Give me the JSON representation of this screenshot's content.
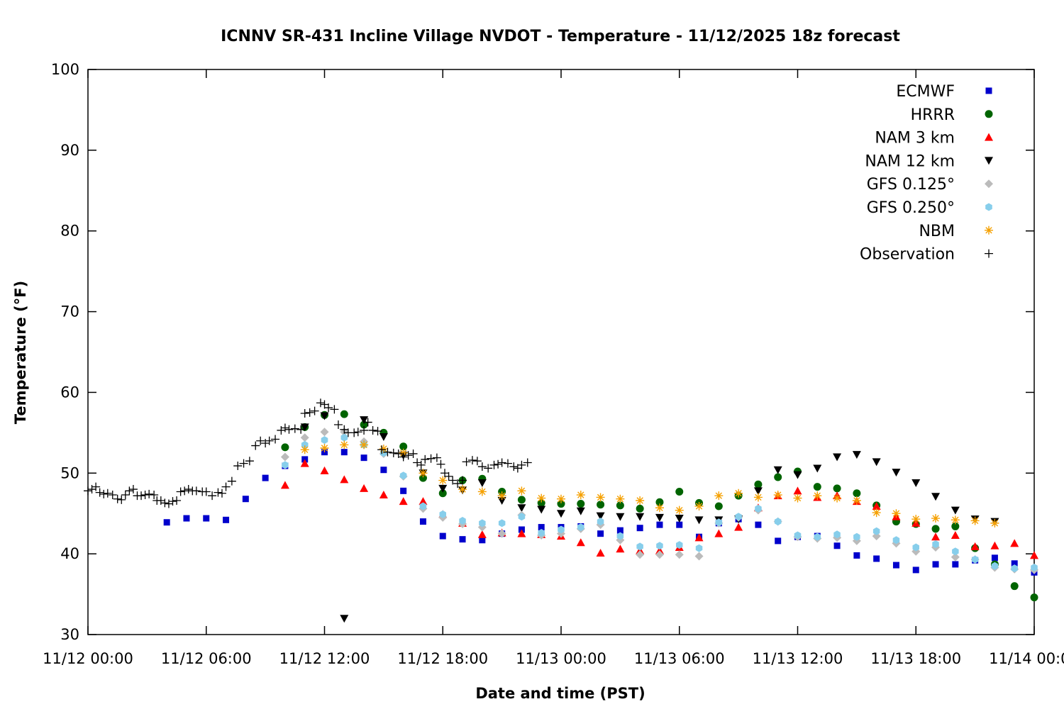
{
  "chart_data": {
    "type": "scatter",
    "title": "ICNNV SR-431 Incline Village NVDOT - Temperature - 11/12/2025 18z forecast",
    "xlabel": "Date and time (PST)",
    "ylabel": "Temperature (°F)",
    "xlim": [
      0,
      48
    ],
    "ylim": [
      30,
      100
    ],
    "x_unit": "hours since 11/12 00:00 PST",
    "xticks": [
      {
        "x": 0,
        "label": "11/12 00:00"
      },
      {
        "x": 6,
        "label": "11/12 06:00"
      },
      {
        "x": 12,
        "label": "11/12 12:00"
      },
      {
        "x": 18,
        "label": "11/12 18:00"
      },
      {
        "x": 24,
        "label": "11/13 00:00"
      },
      {
        "x": 30,
        "label": "11/13 06:00"
      },
      {
        "x": 36,
        "label": "11/13 12:00"
      },
      {
        "x": 42,
        "label": "11/13 18:00"
      },
      {
        "x": 48,
        "label": "11/14 00:00"
      }
    ],
    "yticks": [
      30,
      40,
      50,
      60,
      70,
      80,
      90,
      100
    ],
    "grid": false,
    "legend_position": "top-right",
    "series": [
      {
        "name": "ECMWF",
        "marker": "square",
        "color": "#0000cc",
        "x": [
          4,
          5,
          6,
          7,
          8,
          9,
          10,
          11,
          12,
          13,
          14,
          15,
          16,
          17,
          18,
          19,
          20,
          21,
          22,
          23,
          24,
          25,
          26,
          27,
          28,
          29,
          30,
          31,
          32,
          33,
          34,
          35,
          36,
          37,
          38,
          39,
          40,
          41,
          42,
          43,
          44,
          45,
          46,
          47,
          48
        ],
        "y": [
          43.9,
          44.4,
          44.4,
          44.2,
          46.8,
          49.4,
          50.9,
          51.7,
          52.6,
          52.6,
          51.9,
          50.4,
          47.8,
          44.0,
          42.2,
          41.8,
          41.7,
          42.5,
          43.0,
          43.3,
          43.3,
          43.4,
          42.5,
          42.9,
          43.2,
          43.6,
          43.6,
          42.1,
          43.8,
          44.3,
          43.6,
          41.6,
          42.1,
          42.2,
          41.0,
          39.8,
          39.4,
          38.6,
          38.0,
          38.7,
          38.7,
          39.2,
          39.5,
          38.8,
          37.7
        ]
      },
      {
        "name": "HRRR",
        "marker": "circle",
        "color": "#006400",
        "x": [
          10,
          11,
          12,
          13,
          14,
          15,
          16,
          17,
          18,
          19,
          20,
          21,
          22,
          23,
          24,
          25,
          26,
          27,
          28,
          29,
          30,
          31,
          32,
          33,
          34,
          35,
          36,
          37,
          38,
          39,
          40,
          41,
          42,
          43,
          44,
          45,
          46,
          47,
          48
        ],
        "y": [
          53.2,
          55.7,
          57.2,
          57.3,
          56.0,
          55.0,
          53.3,
          49.4,
          47.5,
          49.1,
          49.3,
          47.7,
          46.7,
          46.3,
          46.2,
          46.2,
          46.1,
          46.0,
          45.6,
          46.4,
          47.7,
          46.3,
          45.9,
          47.2,
          48.6,
          49.5,
          50.2,
          48.3,
          48.1,
          47.5,
          46.0,
          44.0,
          43.7,
          43.1,
          43.4,
          40.7,
          38.7,
          36.0,
          34.6
        ]
      },
      {
        "name": "NAM 3 km",
        "marker": "triangle-up",
        "color": "#ff0000",
        "x": [
          10,
          11,
          12,
          13,
          14,
          15,
          16,
          17,
          18,
          19,
          20,
          21,
          22,
          23,
          24,
          25,
          26,
          27,
          28,
          29,
          30,
          31,
          32,
          33,
          34,
          35,
          36,
          37,
          38,
          39,
          40,
          41,
          42,
          43,
          44,
          45,
          46,
          47,
          48
        ],
        "y": [
          48.5,
          51.2,
          50.3,
          49.2,
          48.1,
          47.3,
          46.5,
          46.5,
          44.9,
          43.8,
          42.4,
          42.6,
          42.5,
          42.4,
          42.2,
          41.4,
          40.1,
          40.6,
          40.4,
          40.4,
          40.8,
          42.0,
          42.5,
          43.3,
          45.7,
          47.2,
          47.8,
          47.0,
          47.2,
          46.5,
          45.9,
          44.6,
          43.8,
          42.1,
          42.3,
          40.9,
          41.0,
          41.3,
          39.8
        ]
      },
      {
        "name": "NAM 12 km",
        "marker": "triangle-down",
        "color": "#000000",
        "x": [
          11,
          12,
          13,
          14,
          15,
          16,
          17,
          18,
          19,
          20,
          21,
          22,
          23,
          24,
          25,
          26,
          27,
          28,
          29,
          30,
          31,
          32,
          33,
          34,
          35,
          36,
          37,
          38,
          39,
          40,
          41,
          42,
          43,
          44,
          45,
          46
        ],
        "y": [
          55.7,
          57.1,
          32.0,
          56.6,
          54.5,
          52.2,
          50.0,
          48.1,
          47.9,
          48.8,
          46.6,
          45.7,
          45.5,
          45.0,
          45.3,
          44.7,
          44.6,
          44.6,
          44.5,
          44.4,
          44.2,
          44.2,
          44.3,
          47.8,
          50.4,
          49.8,
          50.6,
          52.0,
          52.3,
          51.4,
          50.1,
          48.8,
          47.1,
          45.4,
          44.3,
          44.0
        ]
      },
      {
        "name": "GFS 0.125°",
        "marker": "diamond",
        "color": "#bbbbbb",
        "x": [
          10,
          11,
          12,
          13,
          14,
          15,
          16,
          17,
          18,
          19,
          20,
          21,
          22,
          23,
          24,
          25,
          26,
          27,
          28,
          29,
          30,
          31,
          32,
          33,
          34,
          35,
          36,
          37,
          38,
          39,
          40,
          41,
          42,
          43,
          44,
          45,
          46,
          47,
          48
        ],
        "y": [
          52.0,
          54.4,
          55.1,
          55.1,
          53.9,
          52.4,
          49.6,
          45.6,
          44.5,
          43.7,
          43.3,
          42.5,
          44.8,
          42.3,
          42.5,
          43.1,
          43.6,
          41.7,
          39.9,
          39.9,
          39.9,
          39.7,
          43.8,
          44.5,
          45.4,
          44.0,
          42.1,
          41.9,
          42.0,
          41.6,
          42.2,
          41.3,
          40.3,
          40.8,
          39.6,
          39.3,
          38.3,
          38.1,
          38.0
        ]
      },
      {
        "name": "GFS 0.250°",
        "marker": "hexagon",
        "color": "#87ceeb",
        "x": [
          10,
          11,
          12,
          13,
          14,
          15,
          16,
          17,
          18,
          19,
          20,
          21,
          22,
          23,
          24,
          25,
          26,
          27,
          28,
          29,
          30,
          31,
          32,
          33,
          34,
          35,
          36,
          37,
          38,
          39,
          40,
          41,
          42,
          43,
          44,
          45,
          46,
          47,
          48
        ],
        "y": [
          51.0,
          53.5,
          54.1,
          54.4,
          53.5,
          52.5,
          49.7,
          45.9,
          44.9,
          44.1,
          43.8,
          43.8,
          44.6,
          42.6,
          43.0,
          43.3,
          44.0,
          42.2,
          40.9,
          41.0,
          41.1,
          40.7,
          43.9,
          44.6,
          45.6,
          44.0,
          42.3,
          42.1,
          42.4,
          42.1,
          42.8,
          41.7,
          40.8,
          41.2,
          40.3,
          39.3,
          38.5,
          38.2,
          38.3
        ]
      },
      {
        "name": "NBM",
        "marker": "asterisk",
        "color": "#f5a000",
        "x": [
          11,
          12,
          13,
          14,
          15,
          16,
          17,
          18,
          19,
          20,
          21,
          22,
          23,
          24,
          25,
          26,
          27,
          28,
          29,
          30,
          31,
          32,
          33,
          34,
          35,
          36,
          37,
          38,
          39,
          40,
          41,
          42,
          43,
          44,
          45,
          46
        ],
        "y": [
          52.9,
          53.1,
          53.5,
          53.5,
          53.0,
          52.5,
          50.0,
          49.1,
          48.0,
          47.7,
          47.2,
          47.8,
          46.9,
          46.8,
          47.3,
          47.0,
          46.8,
          46.6,
          45.7,
          45.4,
          45.9,
          47.2,
          47.5,
          47.0,
          47.3,
          46.9,
          47.2,
          46.9,
          46.6,
          45.1,
          45.0,
          44.3,
          44.4,
          44.2,
          44.1,
          43.8
        ]
      },
      {
        "name": "Observation",
        "marker": "plus",
        "color": "#000000",
        "x": [
          0,
          0.2,
          0.4,
          0.6,
          0.8,
          1.0,
          1.25,
          1.5,
          1.7,
          1.9,
          2.1,
          2.3,
          2.5,
          2.7,
          2.9,
          3.1,
          3.35,
          3.5,
          3.7,
          3.9,
          4.1,
          4.3,
          4.5,
          4.7,
          4.9,
          5.1,
          5.3,
          5.5,
          5.8,
          6.0,
          6.3,
          6.6,
          6.8,
          7.0,
          7.3,
          7.6,
          7.9,
          8.2,
          8.5,
          8.75,
          9.0,
          9.2,
          9.5,
          9.8,
          10.0,
          10.2,
          10.5,
          10.8,
          11.0,
          11.25,
          11.5,
          11.8,
          12.0,
          12.2,
          12.5,
          12.7,
          13.0,
          13.2,
          13.5,
          13.7,
          14.0,
          14.2,
          14.45,
          14.7,
          14.9,
          15.2,
          15.5,
          15.75,
          16.0,
          16.25,
          16.5,
          16.7,
          16.9,
          17.1,
          17.4,
          17.7,
          17.9,
          18.1,
          18.3,
          18.5,
          18.75,
          19.0,
          19.2,
          19.5,
          19.75,
          20.0,
          20.3,
          20.6,
          20.8,
          21.0,
          21.3,
          21.6,
          21.8,
          22.0,
          22.3
        ],
        "y": [
          47.8,
          48.0,
          48.3,
          47.6,
          47.4,
          47.5,
          47.3,
          46.8,
          46.7,
          47.3,
          47.8,
          48.0,
          47.2,
          47.2,
          47.3,
          47.4,
          47.3,
          46.6,
          46.6,
          46.3,
          46.2,
          46.5,
          46.6,
          47.7,
          47.8,
          48.0,
          47.8,
          47.8,
          47.7,
          47.7,
          47.2,
          47.6,
          47.5,
          48.3,
          49.0,
          50.9,
          51.2,
          51.5,
          53.4,
          54.0,
          53.7,
          54.0,
          54.2,
          55.3,
          55.6,
          55.4,
          55.5,
          55.4,
          57.4,
          57.5,
          57.7,
          58.7,
          58.5,
          58.1,
          57.9,
          56.0,
          55.4,
          55.0,
          55.0,
          55.1,
          55.3,
          56.3,
          55.3,
          55.2,
          52.9,
          52.6,
          52.5,
          52.4,
          52.0,
          52.2,
          52.4,
          51.3,
          51.0,
          51.7,
          51.8,
          51.9,
          51.1,
          50.0,
          49.6,
          49.1,
          48.7,
          49.1,
          51.4,
          51.6,
          51.5,
          50.8,
          50.6,
          51.0,
          51.1,
          51.3,
          51.2,
          50.8,
          50.6,
          51.0,
          51.3
        ]
      }
    ]
  }
}
